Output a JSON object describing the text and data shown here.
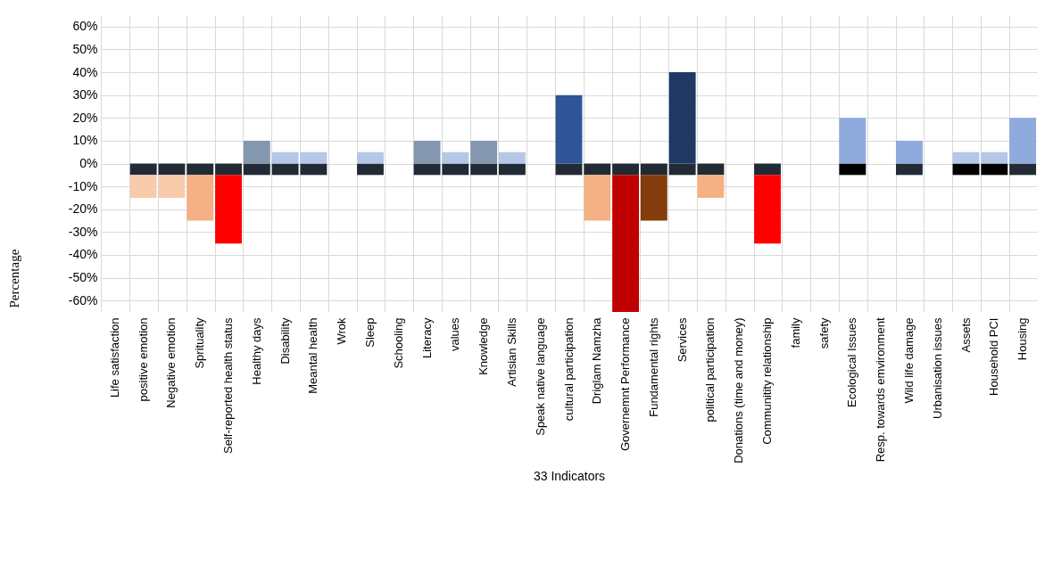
{
  "chart_data": {
    "type": "bar",
    "stacked": true,
    "ylabel": "Percentage",
    "xlabel": "33 Indicators",
    "categories": [
      "Life satisfaction",
      "positive emotion",
      "Negative emotion",
      "Sprituality",
      "Self-reported health status",
      "Healthy  days",
      "Disability",
      "Meantal health",
      "Wrok",
      "Sleep",
      "Schooling",
      "Literacy",
      "values",
      "Knowledge",
      "Artisian Skills",
      "Speak native language",
      "cultural participation",
      "Driglam Namzha",
      "Governemnt Performance",
      "Fundamental rights",
      "Services",
      "political participation",
      "Donations (time and money)",
      "Communitity relationship",
      "family",
      "safety",
      "Ecological Issues",
      "Resp. towards emvironment",
      "Wild life damage",
      "Urbanisation issues",
      "Assets",
      "Household PCI",
      "Housing"
    ],
    "series": [
      {
        "values": [
          null,
          -5,
          -5,
          -5,
          -5,
          -5,
          -5,
          -5,
          null,
          -5,
          null,
          -5,
          -5,
          -5,
          -5,
          null,
          -5,
          -5,
          -5,
          -5,
          -5,
          -5,
          null,
          -5,
          null,
          null,
          -5,
          null,
          -5,
          null,
          -5,
          -5,
          -5
        ],
        "colors": [
          null,
          "#222a35",
          "#222a35",
          "#222a35",
          "#222a35",
          "#222a35",
          "#222a35",
          "#222a35",
          null,
          "#222a35",
          null,
          "#222a35",
          "#222a35",
          "#222a35",
          "#222a35",
          null,
          "#222a35",
          "#222a35",
          "#222a35",
          "#222a35",
          "#222a35",
          "#222a35",
          null,
          "#222a35",
          null,
          null,
          "#000000",
          null,
          "#222a35",
          null,
          "#000000",
          "#000000",
          "#222a35"
        ]
      },
      {
        "values": [
          null,
          -10,
          -10,
          -20,
          -30,
          10,
          5,
          5,
          null,
          5,
          null,
          10,
          5,
          10,
          5,
          null,
          30,
          -20,
          -60,
          -20,
          40,
          -10,
          null,
          -30,
          null,
          null,
          20,
          null,
          10,
          null,
          5,
          5,
          20
        ],
        "colors": [
          null,
          "#f8cbad",
          "#f8cbad",
          "#f4b183",
          "#ff0000",
          "#8497b0",
          "#b4c7e7",
          "#b4c7e7",
          null,
          "#b4c7e7",
          null,
          "#8497b0",
          "#b4c7e7",
          "#8497b0",
          "#b4c7e7",
          null,
          "#2f5597",
          "#f4b183",
          "#c00000",
          "#843c0c",
          "#203864",
          "#f4b183",
          null,
          "#ff0000",
          null,
          null,
          "#8faadc",
          null,
          "#8faadc",
          null,
          "#b4c7e7",
          "#b4c7e7",
          "#8faadc"
        ]
      }
    ],
    "ylim": [
      -65,
      65
    ],
    "yticks": [
      {
        "value": 60,
        "label": "60%"
      },
      {
        "value": 50,
        "label": "50%"
      },
      {
        "value": 40,
        "label": "40%"
      },
      {
        "value": 30,
        "label": "30%"
      },
      {
        "value": 20,
        "label": "20%"
      },
      {
        "value": 10,
        "label": "10%"
      },
      {
        "value": 0,
        "label": "0%"
      },
      {
        "value": -10,
        "label": "-10%"
      },
      {
        "value": -20,
        "label": "-20%"
      },
      {
        "value": -30,
        "label": "-30%"
      },
      {
        "value": -40,
        "label": "-40%"
      },
      {
        "value": -50,
        "label": "-50%"
      },
      {
        "value": -60,
        "label": "-60%"
      }
    ],
    "grid": true
  }
}
